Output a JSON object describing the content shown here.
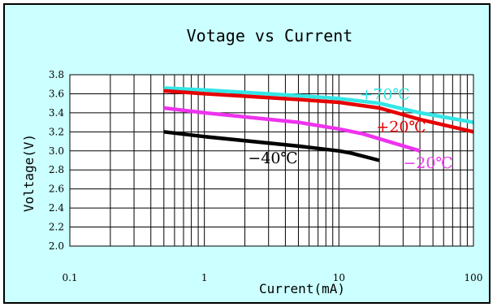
{
  "colors": {
    "background": "#ccffff",
    "plot_area": "#ffffff"
  },
  "chart_data": {
    "type": "line",
    "title": "Votage vs Current",
    "xlabel": "Current(mA)",
    "ylabel": "Voltage(V)",
    "xscale": "log",
    "xlim": [
      0.1,
      100
    ],
    "ylim": [
      2.0,
      3.8
    ],
    "grid": true,
    "x_ticks": [
      "0.1",
      "1",
      "10",
      "100"
    ],
    "y_ticks": [
      "2.0",
      "2.2",
      "2.4",
      "2.6",
      "2.8",
      "3.0",
      "3.2",
      "3.4",
      "3.6",
      "3.8"
    ],
    "series": [
      {
        "name": "+70℃",
        "color": "#33e6e6",
        "x": [
          0.5,
          1,
          5,
          10,
          20,
          40,
          100
        ],
        "y": [
          3.66,
          3.64,
          3.58,
          3.55,
          3.5,
          3.4,
          3.3
        ]
      },
      {
        "name": "+20℃",
        "color": "#e60000",
        "x": [
          0.5,
          1,
          5,
          10,
          20,
          40,
          100
        ],
        "y": [
          3.63,
          3.6,
          3.54,
          3.51,
          3.45,
          3.33,
          3.2
        ]
      },
      {
        "name": "−20℃",
        "color": "#ee33ee",
        "x": [
          0.5,
          1,
          5,
          10,
          15,
          40
        ],
        "y": [
          3.45,
          3.4,
          3.3,
          3.23,
          3.18,
          3.0
        ]
      },
      {
        "name": "−40℃",
        "color": "#000000",
        "x": [
          0.5,
          1,
          5,
          10,
          12,
          20
        ],
        "y": [
          3.2,
          3.15,
          3.05,
          3.0,
          2.98,
          2.9
        ]
      }
    ]
  }
}
